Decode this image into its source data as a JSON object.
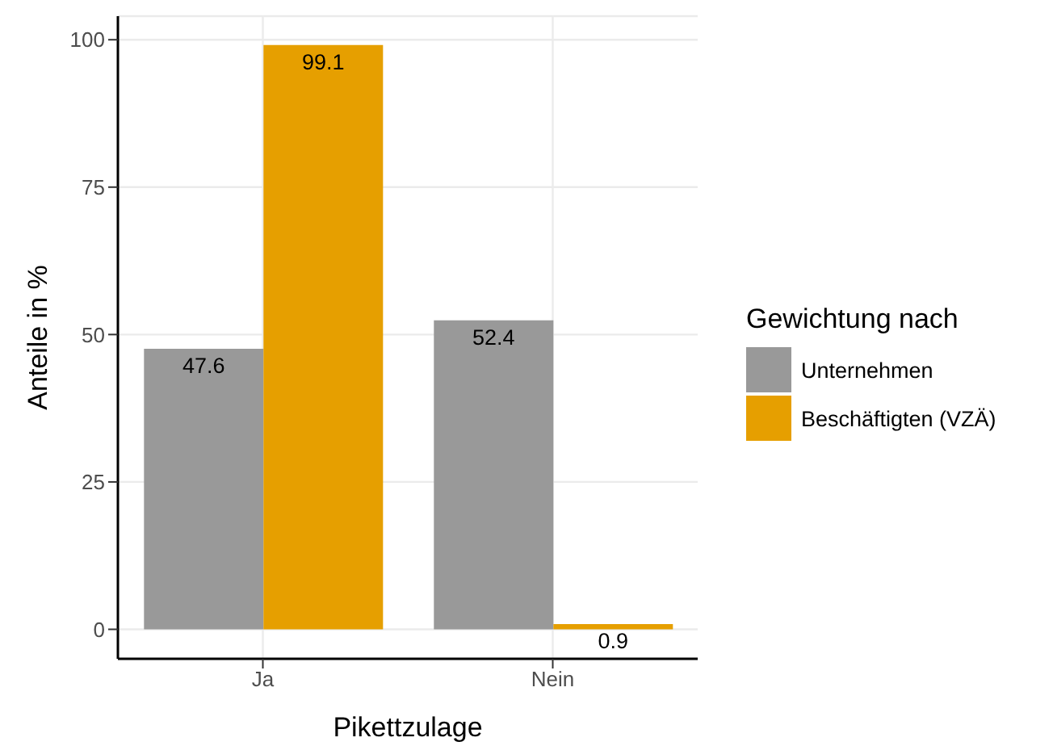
{
  "chart_data": {
    "type": "bar",
    "categories": [
      "Ja",
      "Nein"
    ],
    "xlabel": "Pikettzulage",
    "ylabel": "Anteile in %",
    "legend_title": "Gewichtung nach",
    "series": [
      {
        "name": "Unternehmen",
        "color": "#999999",
        "values": [
          47.6,
          52.4
        ]
      },
      {
        "name": "Beschäftigten (VZÄ)",
        "color": "#e69f00",
        "values": [
          99.1,
          0.9
        ]
      }
    ],
    "ylim": [
      -5,
      104
    ],
    "yticks": [
      0,
      25,
      50,
      75,
      100
    ],
    "grid": true,
    "legend": "right",
    "data_labels": true
  }
}
